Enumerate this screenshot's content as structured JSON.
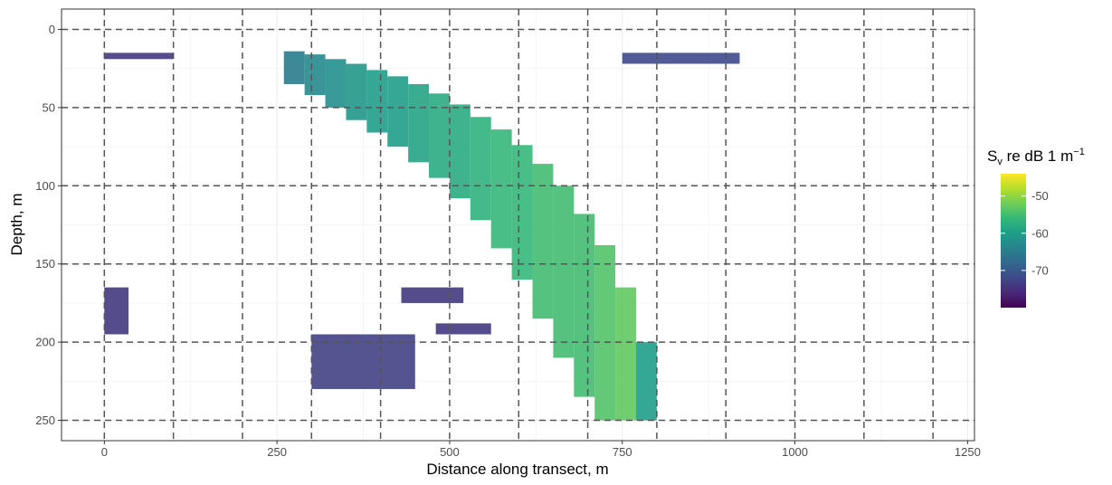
{
  "chart_data": {
    "type": "heatmap",
    "x_label": "Distance along transect, m",
    "y_label": "Depth, m",
    "xlim": [
      -62,
      1260
    ],
    "ylim": [
      263,
      -13
    ],
    "xticks": [
      0,
      250,
      500,
      750,
      1000,
      1250
    ],
    "yticks": [
      0,
      50,
      100,
      150,
      200,
      250
    ],
    "vlines": [
      0,
      100,
      200,
      300,
      400,
      500,
      600,
      700,
      800,
      900,
      1000,
      1100,
      1200
    ],
    "hlines": [
      0,
      50,
      100,
      150,
      200,
      250
    ],
    "grid": true,
    "legend_title": {
      "main": "S",
      "sub": "v",
      "rest": " re dB 1 m",
      "sup": "−1"
    },
    "clim": [
      -80,
      -44
    ],
    "cticks": [
      -50,
      -60,
      -70
    ],
    "colormap": [
      "#440154",
      "#482878",
      "#3e4989",
      "#31688e",
      "#26828e",
      "#1f9e89",
      "#35b779",
      "#6ece58",
      "#b5de2b",
      "#fde725"
    ],
    "cells": {
      "x0": [
        260,
        290,
        320,
        350,
        380,
        410,
        440,
        470,
        500,
        530,
        560,
        590,
        620,
        650,
        680,
        710,
        740,
        770,
        0,
        300,
        430,
        480,
        750,
        0
      ],
      "x1": [
        290,
        320,
        350,
        380,
        410,
        440,
        470,
        500,
        530,
        560,
        590,
        620,
        650,
        680,
        710,
        740,
        770,
        800,
        35,
        450,
        520,
        560,
        920,
        100
      ],
      "depth_top": [
        14,
        16,
        19,
        22,
        26,
        30,
        35,
        41,
        48,
        56,
        64,
        74,
        86,
        100,
        118,
        138,
        165,
        200,
        165,
        195,
        165,
        188,
        15,
        15
      ],
      "depth_bottom": [
        35,
        42,
        50,
        58,
        66,
        75,
        85,
        95,
        108,
        122,
        140,
        160,
        185,
        210,
        235,
        250,
        250,
        250,
        195,
        230,
        175,
        195,
        22,
        19
      ],
      "sv": [
        -65,
        -63,
        -62,
        -61,
        -60,
        -60,
        -59,
        -58,
        -58,
        -57,
        -56,
        -56,
        -55,
        -55,
        -55,
        -54,
        -53,
        -60,
        -74,
        -73,
        -74,
        -74,
        -72,
        -74
      ]
    }
  }
}
